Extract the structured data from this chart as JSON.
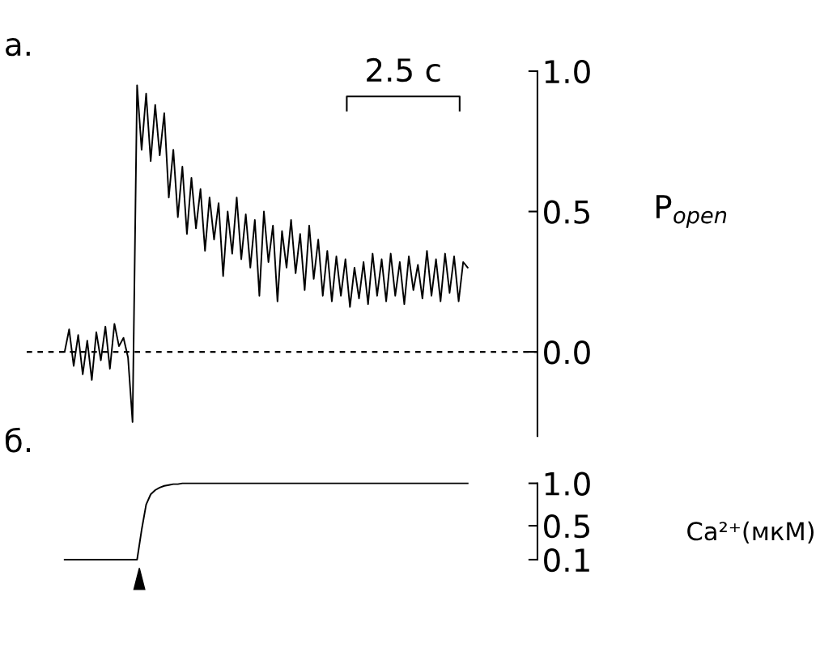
{
  "chart_data": [
    {
      "type": "line",
      "title": "а.",
      "ylabel": "P$_{open}$",
      "annotations": [
        "2.5 с"
      ],
      "tick_labels": "y",
      "categories": [
        null,
        null,
        null,
        null,
        null,
        null,
        null,
        null,
        null,
        null,
        null,
        null,
        null,
        null,
        null,
        null,
        null,
        null,
        null,
        null,
        null,
        null,
        null,
        null,
        null,
        null,
        null,
        null,
        null,
        null,
        null,
        null,
        null,
        null,
        null,
        null,
        null,
        null,
        null,
        null,
        null,
        null,
        null,
        null,
        null,
        null,
        null,
        null,
        null,
        null,
        null,
        null,
        null,
        null,
        null,
        null,
        null,
        null,
        null,
        null,
        null,
        null,
        null,
        null,
        null,
        null,
        null,
        null,
        null,
        null,
        null,
        null,
        null,
        null,
        null,
        null,
        null,
        null,
        null,
        null,
        null,
        null,
        null,
        null,
        null,
        null,
        null,
        null,
        null,
        null
      ],
      "ylim": [
        -0.3,
        1.0
      ],
      "yticks": [
        {
          "value": 0,
          "label": "0.0"
        },
        {
          "value": 0.5,
          "label": "0.5"
        },
        {
          "value": 1,
          "label": "1.0"
        }
      ],
      "ref_lines": [
        {
          "axis": "y",
          "value": 0,
          "line_style": "dashed",
          "color": "#000000"
        }
      ],
      "series": [
        {
          "color": "#000000",
          "values": [
            0.0,
            0.08,
            -0.05,
            0.06,
            -0.08,
            0.04,
            -0.1,
            0.07,
            -0.03,
            0.09,
            -0.06,
            0.1,
            0.02,
            0.05,
            -0.02,
            -0.25,
            0.95,
            0.72,
            0.92,
            0.68,
            0.88,
            0.7,
            0.85,
            0.55,
            0.72,
            0.48,
            0.66,
            0.42,
            0.62,
            0.44,
            0.58,
            0.36,
            0.55,
            0.4,
            0.53,
            0.27,
            0.5,
            0.35,
            0.55,
            0.33,
            0.49,
            0.3,
            0.47,
            0.2,
            0.5,
            0.32,
            0.45,
            0.18,
            0.43,
            0.3,
            0.47,
            0.28,
            0.42,
            0.22,
            0.45,
            0.26,
            0.4,
            0.2,
            0.36,
            0.18,
            0.34,
            0.2,
            0.33,
            0.16,
            0.3,
            0.19,
            0.32,
            0.17,
            0.35,
            0.2,
            0.33,
            0.18,
            0.35,
            0.2,
            0.32,
            0.17,
            0.34,
            0.22,
            0.31,
            0.19,
            0.36,
            0.2,
            0.33,
            0.18,
            0.35,
            0.21,
            0.34,
            0.18,
            0.32,
            0.3
          ]
        }
      ]
    },
    {
      "type": "line",
      "title": "б.",
      "ylabel": "Ca²⁺(мкМ)",
      "tick_labels": "y",
      "categories": [
        null,
        null,
        null,
        null,
        null,
        null,
        null,
        null,
        null,
        null,
        null,
        null,
        null,
        null,
        null,
        null,
        null,
        null,
        null,
        null,
        null,
        null,
        null,
        null,
        null,
        null,
        null,
        null,
        null,
        null,
        null,
        null,
        null,
        null,
        null,
        null,
        null,
        null,
        null,
        null,
        null,
        null,
        null,
        null,
        null,
        null,
        null,
        null,
        null,
        null,
        null,
        null,
        null,
        null,
        null,
        null,
        null,
        null,
        null,
        null,
        null,
        null,
        null,
        null,
        null,
        null,
        null,
        null,
        null,
        null,
        null,
        null,
        null,
        null,
        null,
        null,
        null,
        null,
        null,
        null,
        null,
        null,
        null,
        null,
        null,
        null,
        null,
        null,
        null,
        null
      ],
      "ylim": [
        0.1,
        1.0
      ],
      "yticks": [
        {
          "value": 0.1,
          "label": "0.1"
        },
        {
          "value": 0.5,
          "label": "0.5"
        },
        {
          "value": 1,
          "label": "1.0"
        }
      ],
      "series": [
        {
          "color": "#000000",
          "values": [
            0.1,
            0.1,
            0.1,
            0.1,
            0.1,
            0.1,
            0.1,
            0.1,
            0.1,
            0.1,
            0.1,
            0.1,
            0.1,
            0.1,
            0.1,
            0.1,
            0.1,
            0.45,
            0.75,
            0.87,
            0.92,
            0.95,
            0.97,
            0.98,
            0.99,
            0.99,
            1.0,
            1.0,
            1.0,
            1.0,
            1.0,
            1.0,
            1.0,
            1.0,
            1.0,
            1.0,
            1.0,
            1.0,
            1.0,
            1.0,
            1.0,
            1.0,
            1.0,
            1.0,
            1.0,
            1.0,
            1.0,
            1.0,
            1.0,
            1.0,
            1.0,
            1.0,
            1.0,
            1.0,
            1.0,
            1.0,
            1.0,
            1.0,
            1.0,
            1.0,
            1.0,
            1.0,
            1.0,
            1.0,
            1.0,
            1.0,
            1.0,
            1.0,
            1.0,
            1.0,
            1.0,
            1.0,
            1.0,
            1.0,
            1.0,
            1.0,
            1.0,
            1.0,
            1.0,
            1.0,
            1.0,
            1.0,
            1.0,
            1.0,
            1.0,
            1.0,
            1.0,
            1.0,
            1.0,
            1.0
          ]
        }
      ]
    }
  ]
}
